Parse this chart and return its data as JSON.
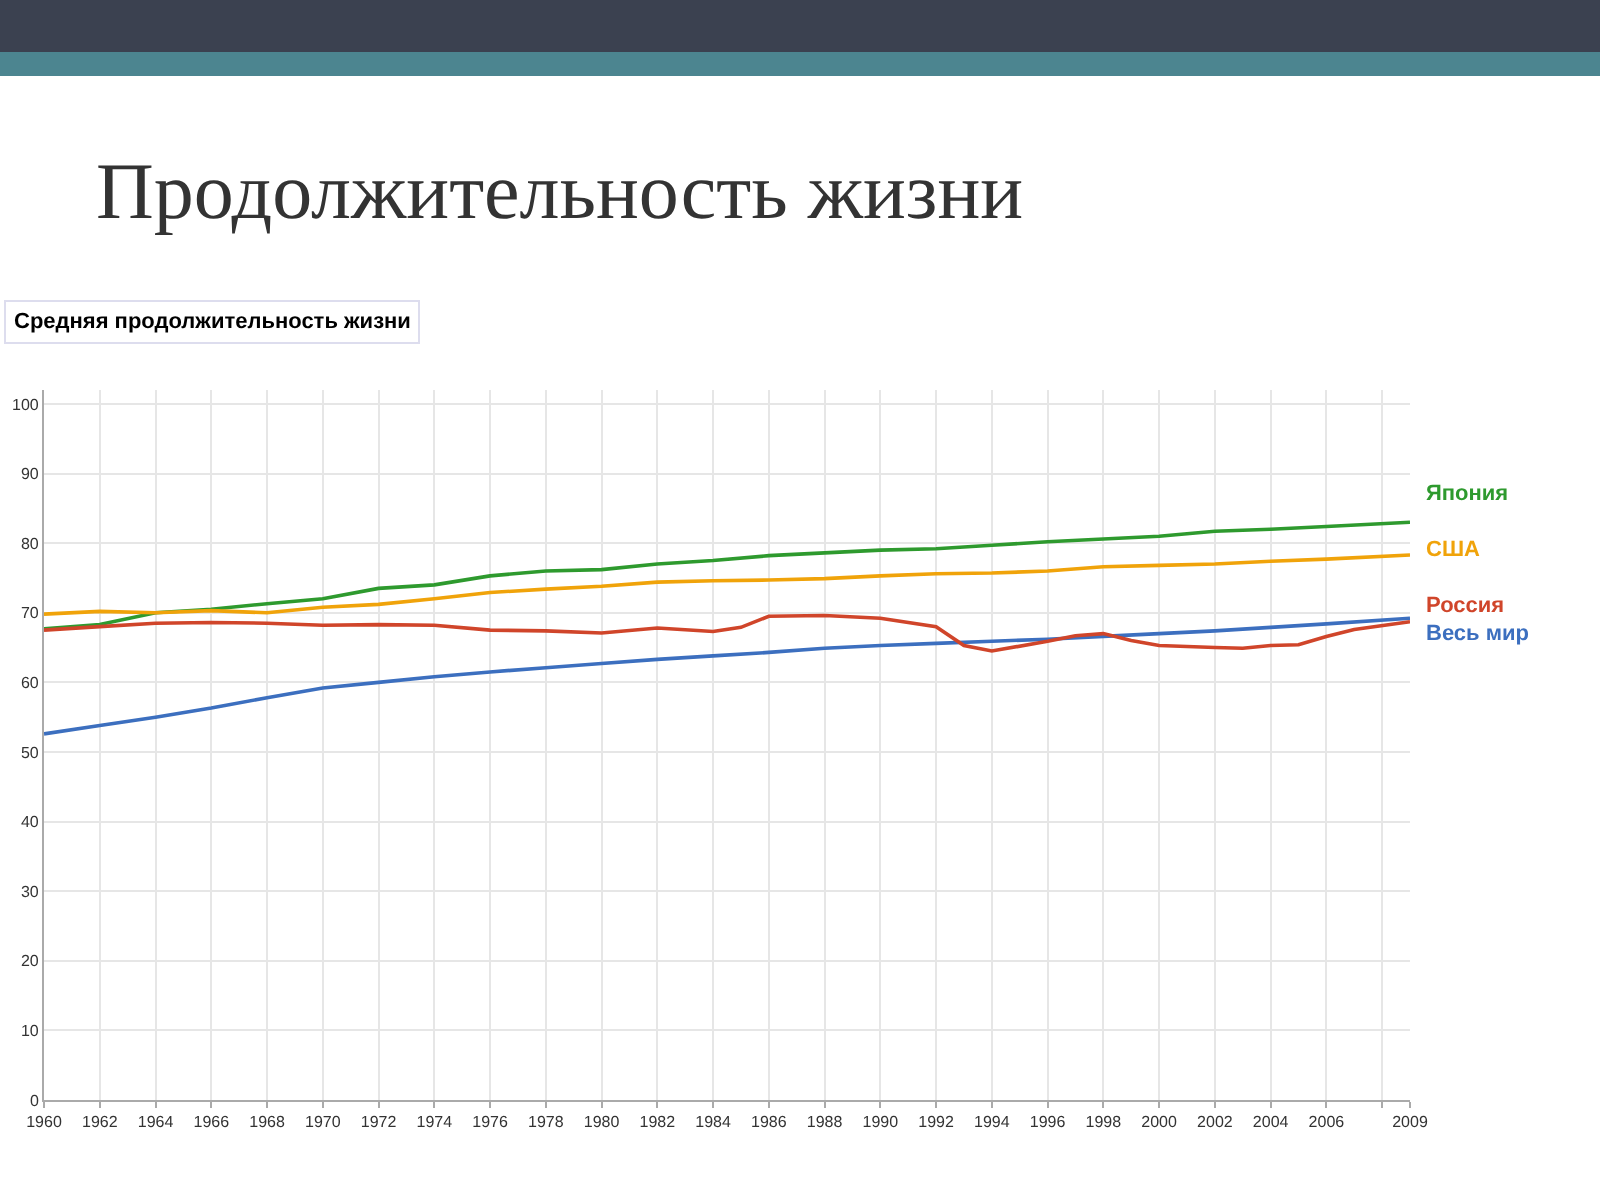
{
  "chart_data": {
    "type": "line",
    "title": "Продолжительность жизни",
    "subtitle": "Средняя продолжительность жизни",
    "x": [
      1960,
      1962,
      1964,
      1966,
      1968,
      1970,
      1972,
      1974,
      1976,
      1978,
      1980,
      1982,
      1984,
      1986,
      1988,
      1990,
      1992,
      1994,
      1996,
      1998,
      2000,
      2002,
      2004,
      2006,
      2009
    ],
    "series": [
      {
        "name": "Япония",
        "color": "#2e9a2e",
        "values": [
          67.7,
          68.3,
          70,
          70.5,
          71.3,
          72,
          73.5,
          74,
          75.3,
          76,
          76.2,
          77,
          77.5,
          78.2,
          78.6,
          79,
          79.2,
          79.7,
          80.2,
          80.6,
          81,
          81.7,
          82,
          82.4,
          83
        ]
      },
      {
        "name": "США",
        "color": "#f0a30a",
        "values": [
          69.8,
          70.2,
          70,
          70.3,
          70,
          70.8,
          71.2,
          72,
          72.9,
          73.4,
          73.8,
          74.4,
          74.6,
          74.7,
          74.9,
          75.3,
          75.6,
          75.7,
          76,
          76.6,
          76.8,
          77,
          77.4,
          77.7,
          78.3
        ]
      },
      {
        "name": "Весь мир",
        "color": "#3c6fbf",
        "values": [
          52.6,
          53.8,
          55,
          56.3,
          57.8,
          59.2,
          60,
          60.8,
          61.5,
          62.1,
          62.7,
          63.3,
          63.8,
          64.3,
          64.9,
          65.3,
          65.6,
          65.9,
          66.2,
          66.6,
          67,
          67.4,
          67.9,
          68.4,
          69.2
        ]
      },
      {
        "name": "Россия",
        "color": "#d0452a",
        "x": [
          1960,
          1962,
          1964,
          1966,
          1968,
          1970,
          1972,
          1974,
          1976,
          1978,
          1980,
          1982,
          1984,
          1985,
          1986,
          1988,
          1990,
          1992,
          1993,
          1994,
          1996,
          1997,
          1998,
          1999,
          2000,
          2002,
          2003,
          2004,
          2005,
          2006,
          2007,
          2009
        ],
        "values": [
          67.5,
          68,
          68.5,
          68.6,
          68.5,
          68.2,
          68.3,
          68.2,
          67.5,
          67.4,
          67.1,
          67.8,
          67.3,
          67.9,
          69.5,
          69.6,
          69.2,
          68,
          65.3,
          64.5,
          65.9,
          66.7,
          67,
          66,
          65.3,
          65,
          64.9,
          65.3,
          65.4,
          66.6,
          67.6,
          68.7
        ]
      }
    ],
    "xlim": [
      1960,
      2009
    ],
    "xticks": [
      1960,
      1962,
      1964,
      1966,
      1968,
      1970,
      1972,
      1974,
      1976,
      1978,
      1980,
      1982,
      1984,
      1986,
      1988,
      1990,
      1992,
      1994,
      1996,
      1998,
      2000,
      2002,
      2004,
      2006,
      {
        "value": 2008,
        "label": null
      },
      2009
    ],
    "ylim": [
      0,
      102
    ],
    "yticks": [
      0,
      10,
      20,
      30,
      40,
      50,
      60,
      70,
      80,
      90,
      100
    ],
    "grid": true,
    "legend": false,
    "marker": "none",
    "line_style": "solid"
  }
}
